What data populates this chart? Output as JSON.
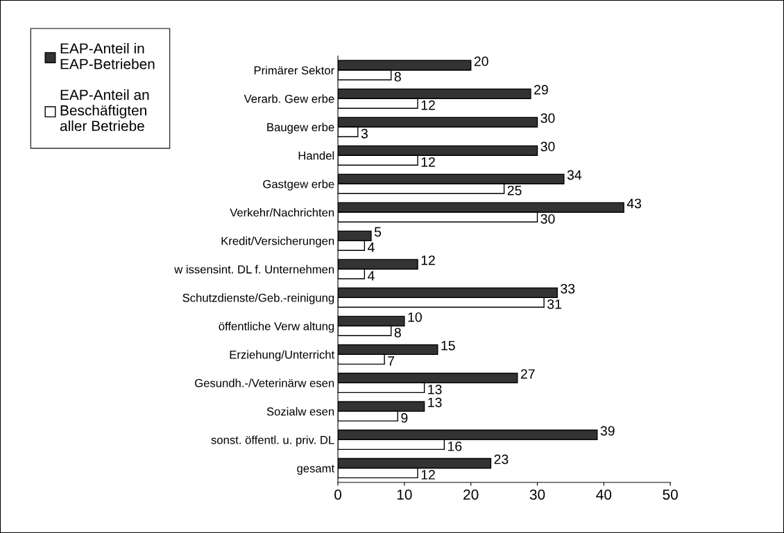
{
  "chart_data": {
    "type": "bar",
    "orientation": "horizontal",
    "categories": [
      "Primärer Sektor",
      "Verarb. Gew erbe",
      "Baugew erbe",
      "Handel",
      "Gastgew erbe",
      "Verkehr/Nachrichten",
      "Kredit/Versicherungen",
      "w issensint. DL f. Unternehmen",
      "Schutzdienste/Geb.-reinigung",
      "öffentliche Verw altung",
      "Erziehung/Unterricht",
      "Gesundh.-/Veterinärw esen",
      "Sozialw esen",
      "sonst. öffentl. u. priv. DL",
      "gesamt"
    ],
    "series": [
      {
        "name": "EAP-Anteil in EAP-Betrieben",
        "color": "#333333",
        "values": [
          20,
          29,
          30,
          30,
          34,
          43,
          5,
          12,
          33,
          10,
          15,
          27,
          13,
          39,
          23
        ]
      },
      {
        "name": "EAP-Anteil an Beschäftigten aller Betriebe",
        "color": "#ffffff",
        "values": [
          8,
          12,
          3,
          12,
          25,
          30,
          4,
          4,
          31,
          8,
          7,
          13,
          9,
          16,
          12
        ]
      }
    ],
    "xlim": [
      0,
      50
    ],
    "xticks": [
      0,
      10,
      20,
      30,
      40,
      50
    ],
    "grid": false,
    "legend": "top left",
    "data_labels": true
  }
}
